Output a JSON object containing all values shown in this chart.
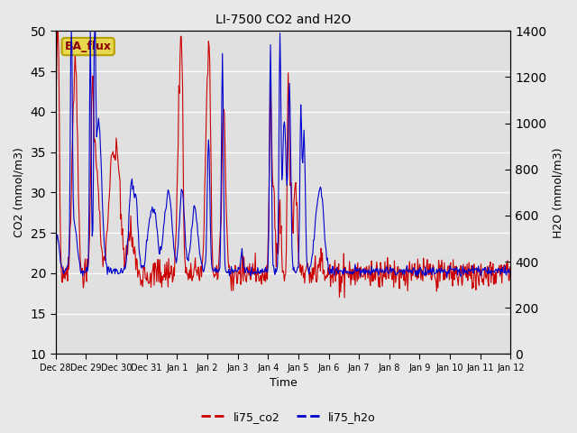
{
  "title": "LI-7500 CO2 and H2O",
  "xlabel": "Time",
  "ylabel_left": "CO2 (mmol/m3)",
  "ylabel_right": "H2O (mmol/m3)",
  "ylim_left": [
    10,
    50
  ],
  "ylim_right": [
    0,
    1400
  ],
  "annotation_text": "BA_flux",
  "color_co2": "#cc0000",
  "color_h2o": "#0000cc",
  "linewidth": 0.8,
  "legend_labels": [
    "li75_co2",
    "li75_h2o"
  ],
  "xtick_labels": [
    "Dec 28",
    "Dec 29",
    "Dec 30",
    "Dec 31",
    "Jan 1",
    "Jan 2",
    "Jan 3",
    "Jan 4",
    "Jan 5",
    "Jan 6",
    "Jan 7",
    "Jan 8",
    "Jan 9",
    "Jan 10",
    "Jan 11",
    "Jan 12"
  ],
  "bg_color": "#e8e8e8",
  "plot_bg_color": "#e0e0e0"
}
